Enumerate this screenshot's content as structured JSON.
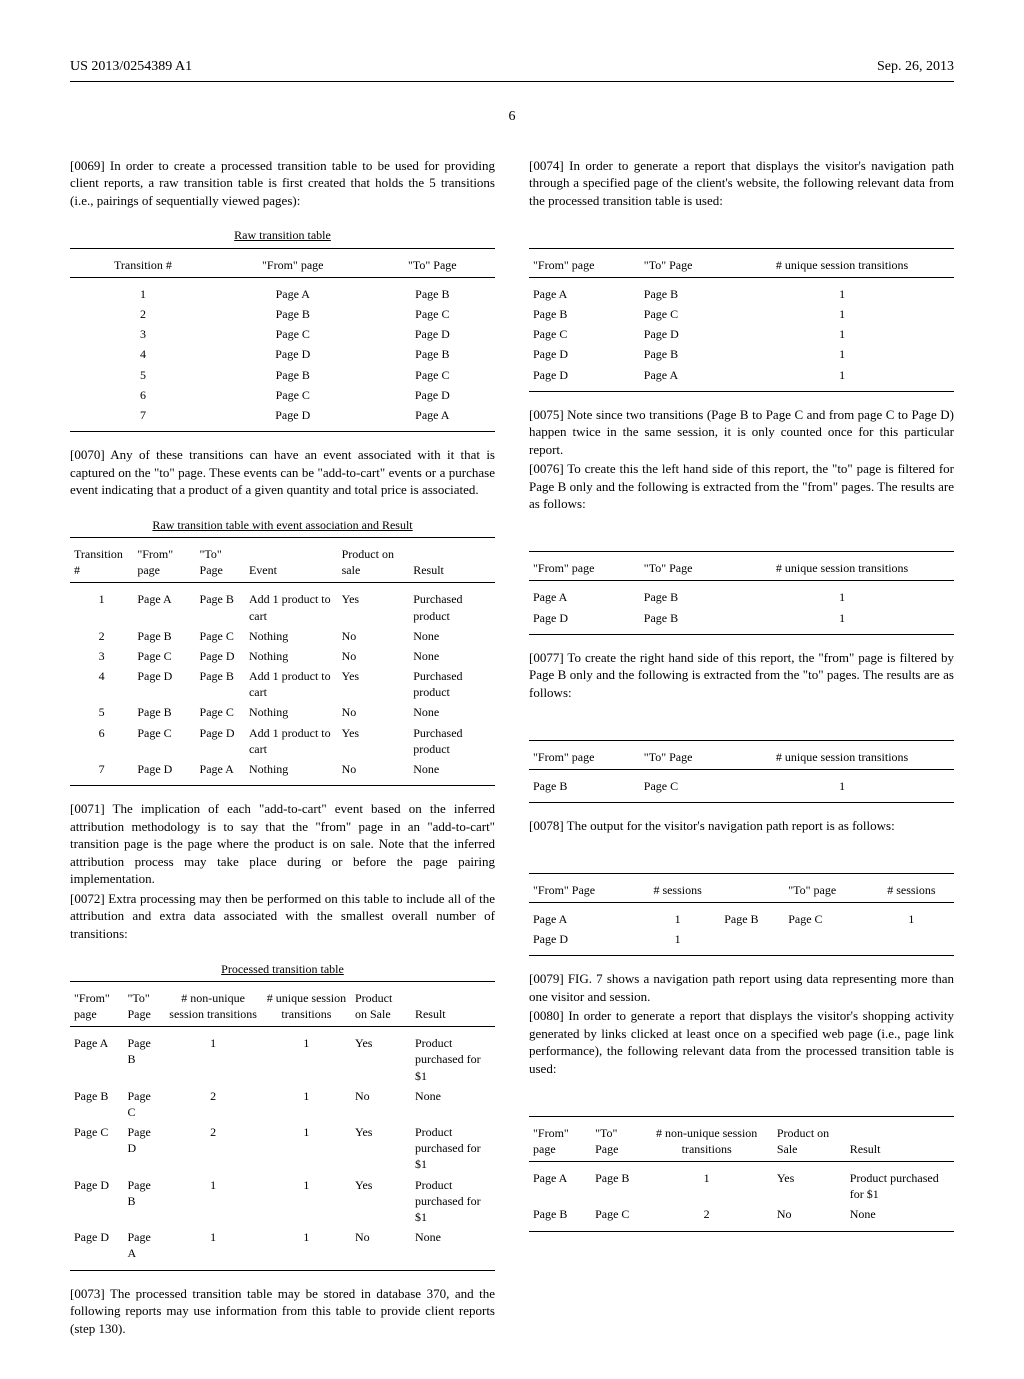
{
  "header": {
    "left": "US 2013/0254389 A1",
    "right": "Sep. 26, 2013",
    "pagenum": "6"
  },
  "left": {
    "p69_num": "[0069]",
    "p69": "   In order to create a processed transition table to be used for providing client reports, a raw transition table is first created that holds the 5 transitions (i.e., pairings of sequentially viewed pages):",
    "tableA": {
      "title": "Raw transition table",
      "cols": [
        "Transition #",
        "\"From\" page",
        "\"To\" Page"
      ],
      "rows": [
        [
          "1",
          "Page A",
          "Page B"
        ],
        [
          "2",
          "Page B",
          "Page C"
        ],
        [
          "3",
          "Page C",
          "Page D"
        ],
        [
          "4",
          "Page D",
          "Page B"
        ],
        [
          "5",
          "Page B",
          "Page C"
        ],
        [
          "6",
          "Page C",
          "Page D"
        ],
        [
          "7",
          "Page D",
          "Page A"
        ]
      ]
    },
    "p70_num": "[0070]",
    "p70": "   Any of these transitions can have an event associated with it that is captured on the \"to\" page. These events can be \"add-to-cart\" events or a purchase event indicating that a product of a given quantity and total price is associated.",
    "tableB": {
      "title": "Raw transition table with event association and Result",
      "cols": [
        "Transition #",
        "\"From\" page",
        "\"To\" Page",
        "Event",
        "Product on sale",
        "Result"
      ],
      "rows": [
        [
          "1",
          "Page A",
          "Page B",
          "Add 1 product to cart",
          "Yes",
          "Purchased product"
        ],
        [
          "2",
          "Page B",
          "Page C",
          "Nothing",
          "No",
          "None"
        ],
        [
          "3",
          "Page C",
          "Page D",
          "Nothing",
          "No",
          "None"
        ],
        [
          "4",
          "Page D",
          "Page B",
          "Add 1 product to cart",
          "Yes",
          "Purchased product"
        ],
        [
          "5",
          "Page B",
          "Page C",
          "Nothing",
          "No",
          "None"
        ],
        [
          "6",
          "Page C",
          "Page D",
          "Add 1 product to cart",
          "Yes",
          "Purchased product"
        ],
        [
          "7",
          "Page D",
          "Page A",
          "Nothing",
          "No",
          "None"
        ]
      ]
    },
    "p71_num": "[0071]",
    "p71": "   The implication of each \"add-to-cart\" event based on the inferred attribution methodology is to say that the \"from\" page in an \"add-to-cart\" transition page is the page where the product is on sale. Note that the inferred attribution process may take place during or before the page pairing implementation.",
    "p72_num": "[0072]",
    "p72": "   Extra processing may then be performed on this table to include all of the attribution and extra data associated with the smallest overall number of transitions:",
    "tableC": {
      "title": "Processed transition table",
      "cols": [
        "\"From\" page",
        "\"To\" Page",
        "# non-unique session transitions",
        "# unique session transitions",
        "Product on Sale",
        "Result"
      ],
      "rows": [
        [
          "Page A",
          "Page B",
          "1",
          "1",
          "Yes",
          "Product purchased for $1"
        ],
        [
          "Page B",
          "Page C",
          "2",
          "1",
          "No",
          "None"
        ],
        [
          "Page C",
          "Page D",
          "2",
          "1",
          "Yes",
          "Product purchased for $1"
        ],
        [
          "Page D",
          "Page B",
          "1",
          "1",
          "Yes",
          "Product purchased for $1"
        ],
        [
          "Page D",
          "Page A",
          "1",
          "1",
          "No",
          "None"
        ]
      ]
    },
    "p73_num": "[0073]",
    "p73": "   The processed transition table may be stored in database 370, and the following reports may use information from this table to provide client reports (step 130)."
  },
  "right": {
    "p74_num": "[0074]",
    "p74": "   In order to generate a report that displays the visitor's navigation path through a specified page of the client's website, the following relevant data from the processed transition table is used:",
    "tableD": {
      "cols": [
        "\"From\" page",
        "\"To\" Page",
        "# unique session transitions"
      ],
      "rows": [
        [
          "Page A",
          "Page B",
          "1"
        ],
        [
          "Page B",
          "Page C",
          "1"
        ],
        [
          "Page C",
          "Page D",
          "1"
        ],
        [
          "Page D",
          "Page B",
          "1"
        ],
        [
          "Page D",
          "Page A",
          "1"
        ]
      ]
    },
    "p75_num": "[0075]",
    "p75": "   Note since two transitions (Page B to Page C and from page C to Page D) happen twice in the same session, it is only counted once for this particular report.",
    "p76_num": "[0076]",
    "p76": "   To create this the left hand side of this report, the \"to\" page is filtered for Page B only and the following is extracted from the \"from\" pages. The results are as follows:",
    "tableE": {
      "cols": [
        "\"From\" page",
        "\"To\" Page",
        "# unique session transitions"
      ],
      "rows": [
        [
          "Page A",
          "Page B",
          "1"
        ],
        [
          "Page D",
          "Page B",
          "1"
        ]
      ]
    },
    "p77_num": "[0077]",
    "p77": "   To create the right hand side of this report, the \"from\" page is filtered by Page B only and the following is extracted from the \"to\" pages. The results are as follows:",
    "tableF": {
      "cols": [
        "\"From\" page",
        "\"To\" Page",
        "# unique session transitions"
      ],
      "rows": [
        [
          "Page B",
          "Page C",
          "1"
        ]
      ]
    },
    "p78_num": "[0078]",
    "p78": "   The output for the visitor's navigation path report is as follows:",
    "tableG": {
      "cols": [
        "\"From\" Page",
        "# sessions",
        "",
        "\"To\" page",
        "# sessions"
      ],
      "rows": [
        [
          "Page A",
          "1",
          "Page B",
          "Page C",
          "1"
        ],
        [
          "Page D",
          "1",
          "",
          "",
          ""
        ]
      ]
    },
    "p79_num": "[0079]",
    "p79": "   FIG. 7 shows a navigation path report using data representing more than one visitor and session.",
    "p80_num": "[0080]",
    "p80": "   In order to generate a report that displays the visitor's shopping activity generated by links clicked at least once on a specified web page (i.e., page link performance), the following relevant data from the processed transition table is used:",
    "tableH": {
      "cols": [
        "\"From\" page",
        "\"To\" Page",
        "# non-unique session transitions",
        "Product on Sale",
        "Result"
      ],
      "rows": [
        [
          "Page A",
          "Page B",
          "1",
          "Yes",
          "Product purchased for $1"
        ],
        [
          "Page B",
          "Page C",
          "2",
          "No",
          "None"
        ]
      ]
    }
  }
}
